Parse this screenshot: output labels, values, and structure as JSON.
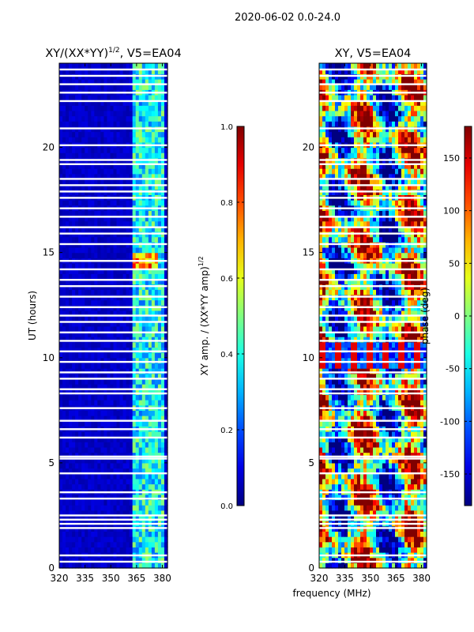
{
  "suptitle": "2020-06-02 0.0-24.0",
  "chart_data": [
    {
      "type": "heatmap",
      "title": "XY/(XX*YY)",
      "title_sup": "1/2",
      "title_suffix": ", V5=EA04",
      "xlabel": "",
      "ylabel": "UT (hours)",
      "xlim": [
        320,
        383
      ],
      "ylim": [
        0,
        24
      ],
      "xticks": [
        320,
        335,
        350,
        365,
        380
      ],
      "yticks": [
        0,
        5,
        10,
        15,
        20
      ],
      "colorbar": {
        "label": "XY amp. / (XX*YY amp)",
        "label_sup": "1/2",
        "range": [
          0.0,
          1.0
        ],
        "ticks": [
          "0.0",
          "0.2",
          "0.4",
          "0.6",
          "0.8",
          "1.0"
        ]
      }
    },
    {
      "type": "heatmap",
      "title": "XY, V5=EA04",
      "xlabel": "frequency (MHz)",
      "ylabel": "",
      "xlim": [
        320,
        383
      ],
      "ylim": [
        0,
        24
      ],
      "xticks": [
        320,
        335,
        350,
        365,
        380
      ],
      "yticks": [
        0,
        5,
        10,
        15,
        20
      ],
      "colorbar": {
        "label": "phase (deg)",
        "range": [
          -180,
          180
        ],
        "ticks": [
          "-150",
          "-100",
          "-50",
          "0",
          "50",
          "100",
          "150"
        ]
      }
    }
  ],
  "flagged_hours": [
    0.3,
    0.6,
    1.9,
    2.1,
    2.3,
    2.5,
    3.3,
    3.6,
    4.5,
    5.2,
    5.3,
    6.2,
    6.6,
    7.0,
    7.6,
    8.3,
    8.5,
    9.0,
    9.3,
    9.8,
    10.3,
    10.8,
    11.2,
    11.7,
    12.0,
    12.4,
    12.9,
    13.4,
    13.7,
    14.2,
    14.6,
    15.4,
    15.9,
    16.2,
    16.7,
    17.1,
    17.6,
    17.9,
    18.2,
    18.5,
    19.2,
    19.4,
    20.1,
    20.9,
    22.2,
    22.6,
    23.0,
    23.4,
    23.7
  ]
}
